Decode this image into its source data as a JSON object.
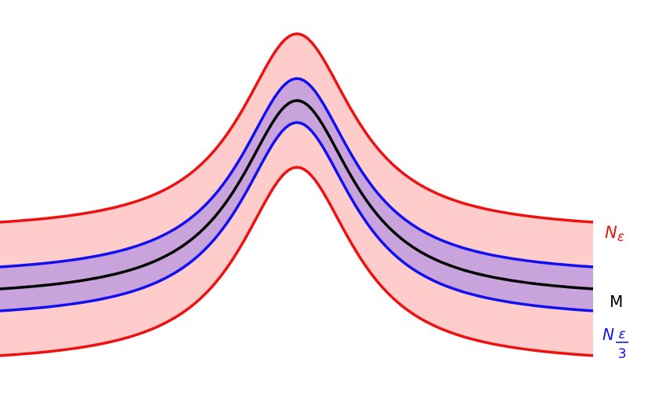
{
  "labels": {
    "outer": {
      "base": "N",
      "sub": "ε"
    },
    "middle": "M",
    "inner": {
      "base": "N",
      "frac_num": "ε",
      "frac_den": "3"
    }
  },
  "colors": {
    "background": "#ffffff",
    "outer_fill": "#ffcccc",
    "inner_fill": "#c9a3dc",
    "outer_stroke": "#ee1111",
    "inner_stroke": "#1111ee",
    "center_stroke": "#000000"
  }
}
